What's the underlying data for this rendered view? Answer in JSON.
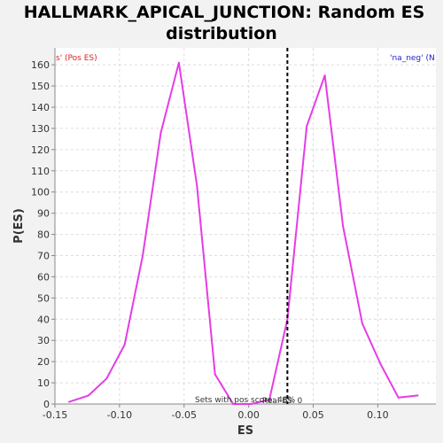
{
  "chart_data": {
    "type": "line",
    "title_line1": "HALLMARK_APICAL_JUNCTION: Random ES",
    "title_line2": "distribution",
    "xlabel": "ES",
    "ylabel": "P(ES)",
    "xlim": [
      -0.15,
      0.145
    ],
    "ylim": [
      0,
      168
    ],
    "x_ticks": [
      -0.15,
      -0.1,
      -0.05,
      0.0,
      0.05,
      0.1
    ],
    "x_tick_labels": [
      "-0.15",
      "-0.10",
      "-0.05",
      "0.00",
      "0.05",
      "0.10"
    ],
    "y_ticks": [
      0,
      10,
      20,
      30,
      40,
      50,
      60,
      70,
      80,
      90,
      100,
      110,
      120,
      130,
      140,
      150,
      160
    ],
    "y_tick_labels": [
      "0",
      "10",
      "20",
      "30",
      "40",
      "50",
      "60",
      "70",
      "80",
      "90",
      "100",
      "110",
      "120",
      "130",
      "140",
      "150",
      "160"
    ],
    "grid": true,
    "series": [
      {
        "color": "#e63ce6",
        "x": [
          -0.139,
          -0.124,
          -0.11,
          -0.096,
          -0.082,
          -0.068,
          -0.054,
          -0.04,
          -0.026,
          -0.012,
          0.002,
          0.016,
          0.03,
          0.045,
          0.059,
          0.073,
          0.088,
          0.102,
          0.116,
          0.131
        ],
        "y": [
          1,
          4,
          12,
          28,
          70,
          128,
          161,
          103,
          14,
          0,
          0,
          2,
          40,
          131,
          155,
          84,
          38,
          19,
          3,
          4
        ]
      }
    ],
    "vline_x": 0.03,
    "vline_color": "#000000",
    "left_corner_text": "s' (Pos ES)",
    "left_corner_color": "#d22",
    "right_corner_text": "'na_neg' (N",
    "right_corner_color": "#22c",
    "footnote_text_1": "Sets with pos score: 48%",
    "footnote_text_2": "Real ES: 0"
  }
}
